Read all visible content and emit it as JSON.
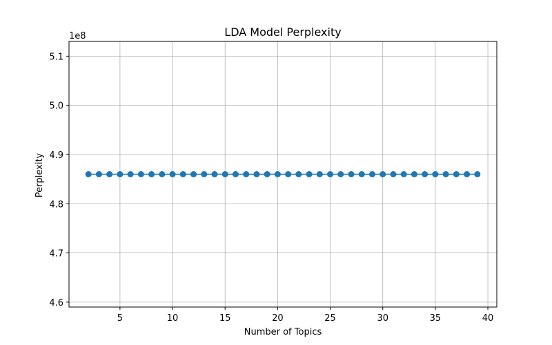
{
  "chart_data": {
    "type": "line",
    "title": "LDA Model Perplexity",
    "xlabel": "Number of Topics",
    "ylabel": "Perplexity",
    "y_offset_label": "1e8",
    "xlim": [
      0.15,
      40.85
    ],
    "ylim": [
      4.59,
      5.13
    ],
    "x_ticks": [
      5,
      10,
      15,
      20,
      25,
      30,
      35,
      40
    ],
    "y_ticks": [
      4.6,
      4.7,
      4.8,
      4.9,
      5.0,
      5.1
    ],
    "y_tick_labels": [
      "4.6",
      "4.7",
      "4.8",
      "4.9",
      "5.0",
      "5.1"
    ],
    "grid": true,
    "marker": "circle",
    "series": [
      {
        "color": "#1f77b4",
        "x": [
          2,
          3,
          4,
          5,
          6,
          7,
          8,
          9,
          10,
          11,
          12,
          13,
          14,
          15,
          16,
          17,
          18,
          19,
          20,
          21,
          22,
          23,
          24,
          25,
          26,
          27,
          28,
          29,
          30,
          31,
          32,
          33,
          34,
          35,
          36,
          37,
          38,
          39
        ],
        "y": [
          4.86,
          4.86,
          4.86,
          4.86,
          4.86,
          4.86,
          4.86,
          4.86,
          4.86,
          4.86,
          4.86,
          4.86,
          4.86,
          4.86,
          4.86,
          4.86,
          4.86,
          4.86,
          4.86,
          4.86,
          4.86,
          4.86,
          4.86,
          4.86,
          4.86,
          4.86,
          4.86,
          4.86,
          4.86,
          4.86,
          4.86,
          4.86,
          4.86,
          4.86,
          4.86,
          4.86,
          4.86,
          4.86
        ]
      }
    ]
  }
}
